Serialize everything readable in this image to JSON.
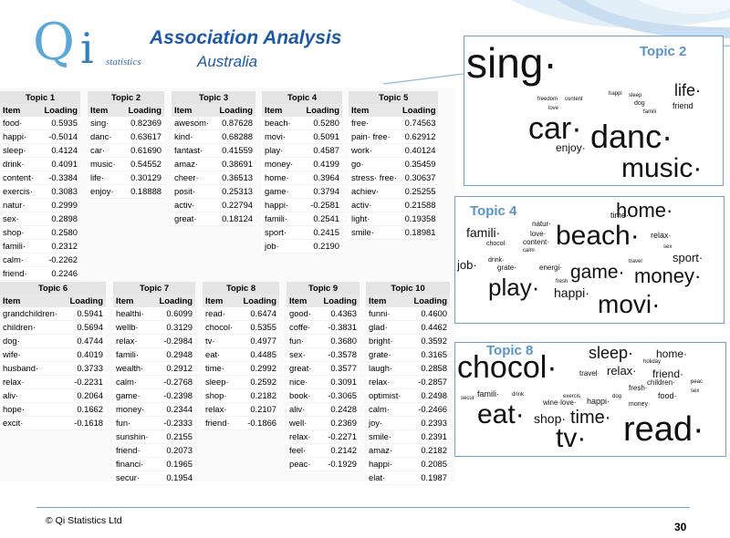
{
  "header": {
    "logo_q": "Q",
    "logo_i": "i",
    "logo_statistics": "statistics",
    "title": "Association Analysis",
    "subtitle": "Australia"
  },
  "tables": [
    {
      "title": "Topic 1",
      "col_item": "Item",
      "col_loading": "Loading",
      "rows": [
        [
          "food·",
          "0.5935"
        ],
        [
          "happi·",
          "-0.5014"
        ],
        [
          "sleep·",
          "0.4124"
        ],
        [
          "drink·",
          "0.4091"
        ],
        [
          "content·",
          "-0.3384"
        ],
        [
          "exercis·",
          "0.3083"
        ],
        [
          "natur·",
          "0.2999"
        ],
        [
          "sex·",
          "0.2898"
        ],
        [
          "shop·",
          "0.2580"
        ],
        [
          "famili·",
          "0.2312"
        ],
        [
          "calm·",
          "-0.2262"
        ],
        [
          "friend·",
          "0.2246"
        ]
      ]
    },
    {
      "title": "Topic 2",
      "col_item": "Item",
      "col_loading": "Loading",
      "rows": [
        [
          "sing·",
          "0.82369"
        ],
        [
          "danc·",
          "0.63617"
        ],
        [
          "car·",
          "0.61690"
        ],
        [
          "music·",
          "0.54552"
        ],
        [
          "life·",
          "0.30129"
        ],
        [
          "enjoy·",
          "0.18888"
        ]
      ]
    },
    {
      "title": "Topic 3",
      "col_item": "Item",
      "col_loading": "Loading",
      "rows": [
        [
          "awesom·",
          "0.87628"
        ],
        [
          "kind·",
          "0.68288"
        ],
        [
          "fantast·",
          "0.41559"
        ],
        [
          "amaz·",
          "0.38691"
        ],
        [
          "cheer·",
          "0.36513"
        ],
        [
          "posit·",
          "0.25313"
        ],
        [
          "activ·",
          "0.22794"
        ],
        [
          "great·",
          "0.18124"
        ]
      ]
    },
    {
      "title": "Topic 4",
      "col_item": "Item",
      "col_loading": "Loading",
      "rows": [
        [
          "beach·",
          "0.5280"
        ],
        [
          "movi·",
          "0.5091"
        ],
        [
          "play·",
          "0.4587"
        ],
        [
          "money·",
          "0.4199"
        ],
        [
          "home·",
          "0.3964"
        ],
        [
          "game·",
          "0.3794"
        ],
        [
          "happi·",
          "-0.2581"
        ],
        [
          "famili·",
          "0.2541"
        ],
        [
          "sport·",
          "0.2415"
        ],
        [
          "job·",
          "0.2190"
        ]
      ]
    },
    {
      "title": "Topic 5",
      "col_item": "Item",
      "col_loading": "Loading",
      "rows": [
        [
          "free·",
          "0.74563"
        ],
        [
          "pain· free·",
          "0.62912"
        ],
        [
          "work·",
          "0.40124"
        ],
        [
          "go·",
          "0.35459"
        ],
        [
          "stress· free·",
          "0.30637"
        ],
        [
          "achiev·",
          "0.25255"
        ],
        [
          "activ·",
          "0.21588"
        ],
        [
          "light·",
          "0.19358"
        ],
        [
          "smile·",
          "0.18981"
        ]
      ]
    },
    {
      "title": "Topic 6",
      "col_item": "Item",
      "col_loading": "Loading",
      "rows": [
        [
          "grandchildren·",
          "0.5941"
        ],
        [
          "children·",
          "0.5694"
        ],
        [
          "dog·",
          "0.4744"
        ],
        [
          "wife·",
          "0.4019"
        ],
        [
          "husband·",
          "0.3733"
        ],
        [
          "relax·",
          "-0.2231"
        ],
        [
          "aliv·",
          "0.2064"
        ],
        [
          "hope·",
          "0.1662"
        ],
        [
          "excit·",
          "-0.1618"
        ]
      ]
    },
    {
      "title": "Topic 7",
      "col_item": "Item",
      "col_loading": "Loading",
      "rows": [
        [
          "healthi·",
          "0.6099"
        ],
        [
          "wellb·",
          "0.3129"
        ],
        [
          "relax·",
          "-0.2984"
        ],
        [
          "famili·",
          "0.2948"
        ],
        [
          "wealth·",
          "0.2912"
        ],
        [
          "calm·",
          "-0.2768"
        ],
        [
          "game·",
          "-0.2398"
        ],
        [
          "money·",
          "0.2344"
        ],
        [
          "fun·",
          "-0.2333"
        ],
        [
          "sunshin·",
          "0.2155"
        ],
        [
          "friend·",
          "0.2073"
        ],
        [
          "financi·",
          "0.1965"
        ],
        [
          "secur·",
          "0.1954"
        ]
      ]
    },
    {
      "title": "Topic 8",
      "col_item": "Item",
      "col_loading": "Loading",
      "rows": [
        [
          "read·",
          "0.6474"
        ],
        [
          "chocol·",
          "0.5355"
        ],
        [
          "tv·",
          "0.4977"
        ],
        [
          "eat·",
          "0.4485"
        ],
        [
          "time·",
          "0.2992"
        ],
        [
          "sleep·",
          "0.2592"
        ],
        [
          "shop·",
          "0.2182"
        ],
        [
          "relax·",
          "0.2107"
        ],
        [
          "friend·",
          "-0.1866"
        ]
      ]
    },
    {
      "title": "Topic 9",
      "col_item": "Item",
      "col_loading": "Loading",
      "rows": [
        [
          "good·",
          "0.4363"
        ],
        [
          "coffe·",
          "-0.3831"
        ],
        [
          "fun·",
          "0.3680"
        ],
        [
          "sex·",
          "-0.3578"
        ],
        [
          "great·",
          "0.3577"
        ],
        [
          "nice·",
          "0.3091"
        ],
        [
          "book·",
          "-0.3065"
        ],
        [
          "aliv·",
          "0.2428"
        ],
        [
          "well·",
          "0.2369"
        ],
        [
          "relax·",
          "-0.2271"
        ],
        [
          "feel·",
          "0.2142"
        ],
        [
          "peac·",
          "-0.1929"
        ]
      ]
    },
    {
      "title": "Topic 10",
      "col_item": "Item",
      "col_loading": "Loading",
      "rows": [
        [
          "funni·",
          "0.4600"
        ],
        [
          "glad·",
          "0.4462"
        ],
        [
          "bright·",
          "0.3592"
        ],
        [
          "grate·",
          "0.3165"
        ],
        [
          "laugh·",
          "0.2858"
        ],
        [
          "relax·",
          "-0.2857"
        ],
        [
          "optimist·",
          "0.2498"
        ],
        [
          "calm·",
          "-0.2466"
        ],
        [
          "joy·",
          "0.2393"
        ],
        [
          "smile·",
          "0.2391"
        ],
        [
          "amaz·",
          "0.2182"
        ],
        [
          "happi·",
          "0.2085"
        ],
        [
          "elat·",
          "0.1987"
        ]
      ]
    }
  ],
  "clouds": [
    {
      "label": "Topic 2",
      "words": [
        "sing·",
        "car·",
        "danc·",
        "music·",
        "life·",
        "enjoy·",
        "friend",
        "happi",
        "sleep",
        "dog",
        "freedom",
        "content",
        "famili",
        "love"
      ]
    },
    {
      "label": "Topic 4",
      "words": [
        "home·",
        "beach·",
        "movi·",
        "play·",
        "money·",
        "game·",
        "famili·",
        "sport·",
        "job·",
        "happi·",
        "time·",
        "relax·",
        "natur·",
        "love·",
        "content·",
        "chocol·",
        "drink·",
        "calm·",
        "grate·",
        "energi·",
        "fresh",
        "sex",
        "travel"
      ]
    },
    {
      "label": "Topic 8",
      "words": [
        "chocol·",
        "read·",
        "tv·",
        "eat·",
        "time·",
        "shop·",
        "sleep·",
        "relax·",
        "home·",
        "friend·",
        "famili·",
        "children·",
        "food·",
        "happi·",
        "wine·love·",
        "fresh·",
        "money·",
        "travel·",
        "holiday",
        "exercis",
        "peac",
        "drink",
        "secur",
        "sex",
        "dog"
      ]
    }
  ],
  "footer": {
    "copyright": "© Qi Statistics Ltd",
    "page": "30"
  }
}
